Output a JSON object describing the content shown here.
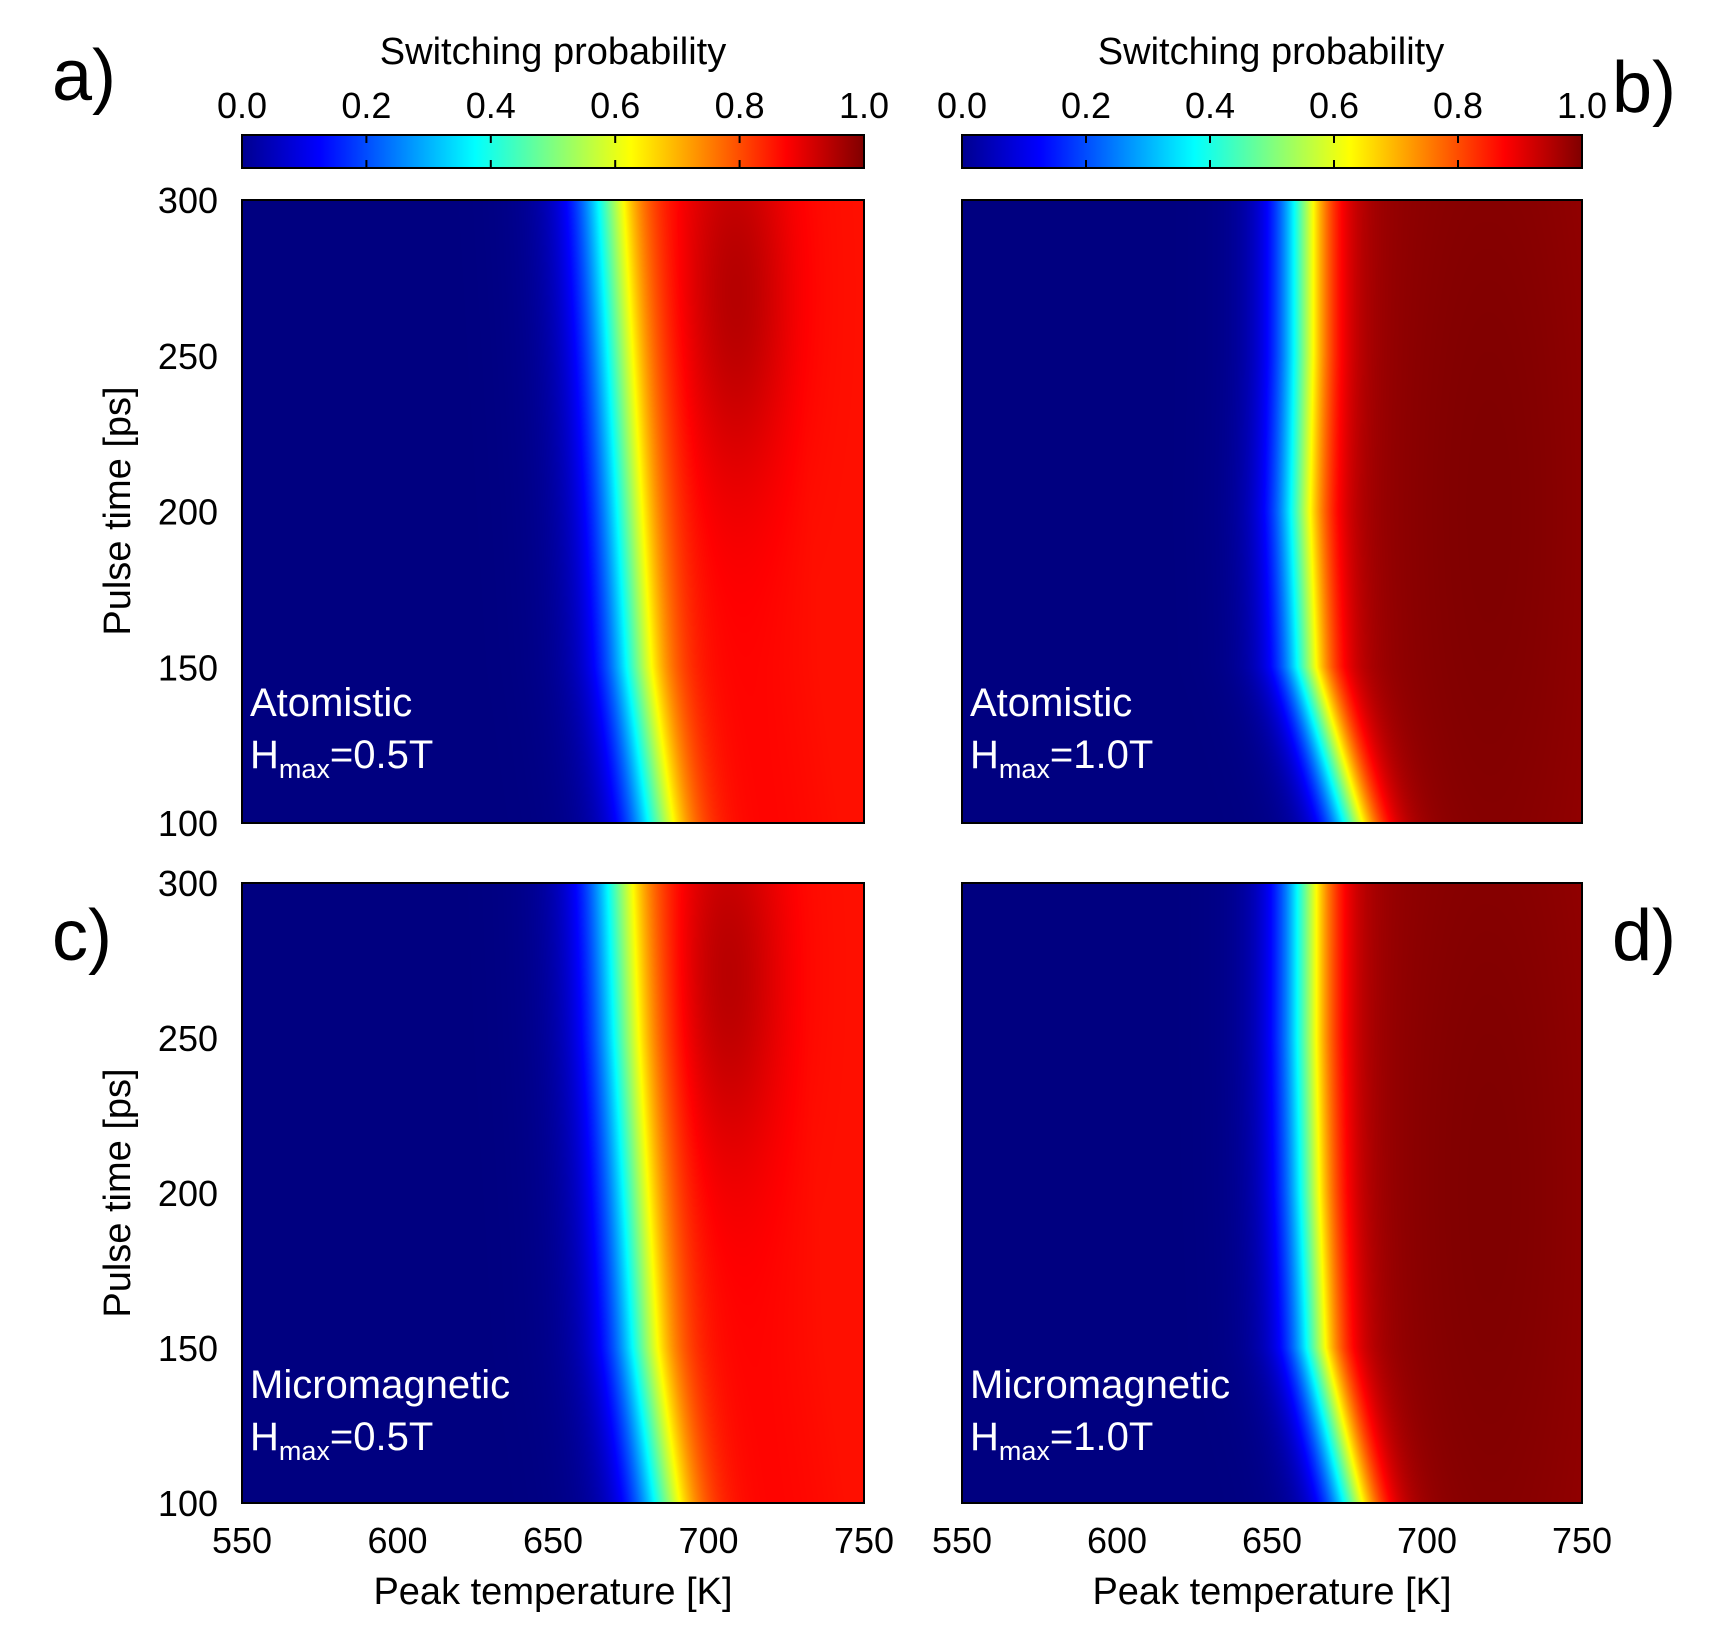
{
  "chart_data": {
    "type": "heatmap",
    "colormap": "jet",
    "colorbar": {
      "title": "Switching probability",
      "range": [
        0.0,
        1.0
      ],
      "ticks": [
        "0.0",
        "0.2",
        "0.4",
        "0.6",
        "0.8",
        "1.0"
      ]
    },
    "x_axis": {
      "label": "Peak temperature [K]",
      "range": [
        550,
        750
      ],
      "ticks": [
        "550",
        "600",
        "650",
        "700",
        "750"
      ]
    },
    "y_axis": {
      "label": "Pulse time [ps]",
      "range": [
        100,
        300
      ],
      "ticks": [
        "100",
        "150",
        "200",
        "250",
        "300"
      ]
    },
    "pulse_times_ps": [
      100,
      150,
      200,
      250,
      300
    ],
    "panels": [
      {
        "letter": "a)",
        "model": "Atomistic",
        "field_prefix": "H",
        "field_sub": "max",
        "field_value": "=0.5T",
        "transition_midpoint_K": [
          683,
          676,
          673,
          670,
          667
        ],
        "transition_width_K": 7,
        "high_side_value_near": 0.9,
        "high_side_value_far": 0.86,
        "dark_band": {
          "center_K": 708,
          "spread_K": 18,
          "value": 0.95,
          "t_center_ps": 270,
          "t_spread_ps": 60
        }
      },
      {
        "letter": "b)",
        "model": "Atomistic",
        "field_prefix": "H",
        "field_sub": "max",
        "field_value": "=1.0T",
        "transition_midpoint_K": [
          676,
          661,
          659,
          660,
          660
        ],
        "transition_width_K": 6,
        "high_side_value_near": 0.98,
        "high_side_value_far": 0.97,
        "dark_band": {
          "center_K": 720,
          "spread_K": 40,
          "value": 1.0,
          "t_center_ps": 200,
          "t_spread_ps": 200
        }
      },
      {
        "letter": "c)",
        "model": "Micromagnetic",
        "field_prefix": "H",
        "field_sub": "max",
        "field_value": "=0.5T",
        "transition_midpoint_K": [
          685,
          678,
          675,
          672,
          670
        ],
        "transition_width_K": 7,
        "high_side_value_near": 0.9,
        "high_side_value_far": 0.86,
        "dark_band": {
          "center_K": 705,
          "spread_K": 18,
          "value": 0.95,
          "t_center_ps": 270,
          "t_spread_ps": 60
        }
      },
      {
        "letter": "d)",
        "model": "Micromagnetic",
        "field_prefix": "H",
        "field_sub": "max",
        "field_value": "=1.0T",
        "transition_midpoint_K": [
          676,
          664,
          662,
          661,
          661
        ],
        "transition_width_K": 6,
        "high_side_value_near": 0.98,
        "high_side_value_far": 0.97,
        "dark_band": {
          "center_K": 720,
          "spread_K": 40,
          "value": 1.0,
          "t_center_ps": 200,
          "t_spread_ps": 200
        }
      }
    ]
  }
}
